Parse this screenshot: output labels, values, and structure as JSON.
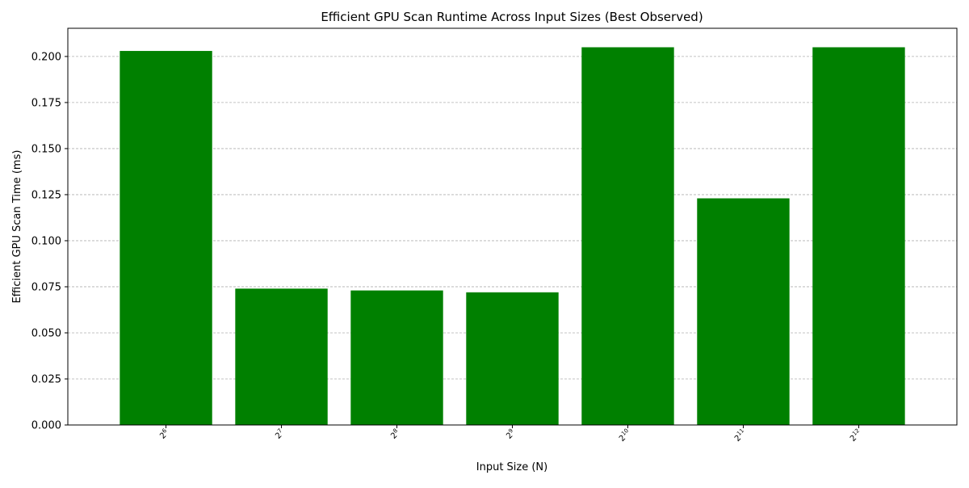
{
  "chart_data": {
    "type": "bar",
    "title": "Efficient GPU Scan Runtime Across Input Sizes (Best Observed)",
    "xlabel": "Input Size (N)",
    "ylabel": "Efficient GPU Scan Time (ms)",
    "categories": [
      "2^6",
      "2^7",
      "2^8",
      "2^9",
      "2^10",
      "2^11",
      "2^12"
    ],
    "category_bases": [
      "2",
      "2",
      "2",
      "2",
      "2",
      "2",
      "2"
    ],
    "category_exponents": [
      "6",
      "7",
      "8",
      "9",
      "10",
      "11",
      "12"
    ],
    "values": [
      0.203,
      0.074,
      0.073,
      0.072,
      0.205,
      0.123,
      0.205
    ],
    "ylim": [
      0,
      0.2153
    ],
    "yticks": [
      0.0,
      0.025,
      0.05,
      0.075,
      0.1,
      0.125,
      0.15,
      0.175,
      0.2
    ],
    "ytick_labels": [
      "0.000",
      "0.025",
      "0.050",
      "0.075",
      "0.100",
      "0.125",
      "0.150",
      "0.175",
      "0.200"
    ],
    "bar_color": "#008000",
    "grid": "y-dashed",
    "xtick_rotation": 45
  }
}
